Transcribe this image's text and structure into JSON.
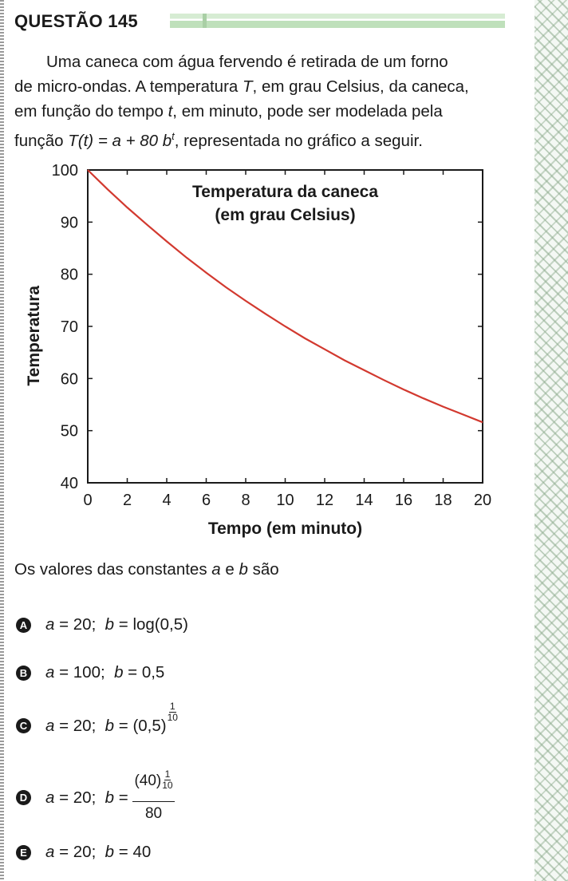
{
  "question": {
    "title": "QUESTÃO 145",
    "para_line1": "Uma caneca com água fervendo é retirada de um forno",
    "para_line2": "de micro-ondas. A temperatura ",
    "para_T": "T",
    "para_line2b": ", em grau Celsius, da caneca,",
    "para_line3a": "em função do tempo ",
    "para_t": "t",
    "para_line3b": ", em minuto, pode ser modelada pela",
    "para_line4a": "função ",
    "para_func": "T(t) = a + 80 b",
    "para_exp": "t",
    "para_line4b": ", representada no gráfico a seguir.",
    "prompt_a": "Os valores das constantes ",
    "prompt_var_a": "a",
    "prompt_e": " e ",
    "prompt_var_b": "b",
    "prompt_end": " são"
  },
  "chart_data": {
    "type": "line",
    "title": "Temperatura da caneca",
    "subtitle": "(em grau Celsius)",
    "xlabel": "Tempo (em minuto)",
    "ylabel": "Temperatura",
    "xlim": [
      0,
      20
    ],
    "ylim": [
      40,
      100
    ],
    "xticks": [
      0,
      2,
      4,
      6,
      8,
      10,
      12,
      14,
      16,
      18,
      20
    ],
    "yticks": [
      40,
      50,
      60,
      70,
      80,
      90,
      100
    ],
    "grid": false,
    "series": [
      {
        "color": "#d2392f",
        "x": [
          0,
          1,
          2,
          3,
          4,
          5,
          6,
          7,
          8,
          9,
          10,
          11,
          12,
          13,
          14,
          15,
          16,
          17,
          18,
          19,
          20
        ],
        "y": [
          100,
          96.3,
          92.8,
          89.5,
          86.3,
          83.2,
          80.3,
          77.5,
          74.9,
          72.4,
          70,
          67.7,
          65.6,
          63.5,
          61.6,
          59.7,
          57.9,
          56.2,
          54.6,
          53.1,
          51.6
        ]
      }
    ]
  },
  "options": [
    {
      "letter": "A",
      "a_part": "a",
      "text1": " = 20;  ",
      "b_part": "b",
      "text2": " = log(0,5)"
    },
    {
      "letter": "B",
      "a_part": "a",
      "text1": " = 100;  ",
      "b_part": "b",
      "text2": " = 0,5"
    },
    {
      "letter": "C",
      "a_part": "a",
      "text1": " = 20;  ",
      "b_part": "b",
      "text2": " = (0,5)",
      "sup_num": "1",
      "sup_den": "10"
    },
    {
      "letter": "D",
      "a_part": "a",
      "text1": " = 20;  ",
      "b_part": "b",
      "text2": " = ",
      "frac_num": "(40)",
      "sup_num": "1",
      "sup_den": "10",
      "frac_den": "80"
    },
    {
      "letter": "E",
      "a_part": "a",
      "text1": " = 20;  ",
      "b_part": "b",
      "text2": " = 40"
    }
  ],
  "colors": {
    "curve": "#d2392f",
    "title_bar": "#cfe8cb",
    "text": "#1a1a1a"
  }
}
